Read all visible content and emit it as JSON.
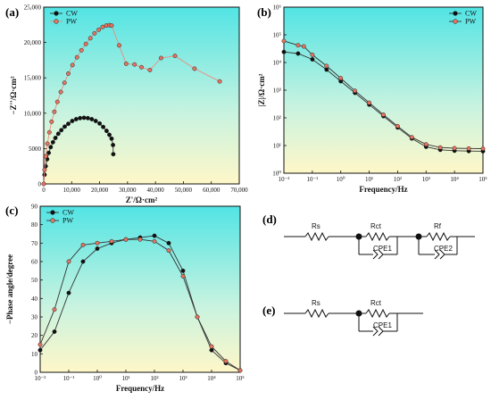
{
  "panel_letters": [
    "(a)",
    "(b)",
    "(c)",
    "(d)",
    "(e)"
  ],
  "colors": {
    "cw_fill": "#111111",
    "pw_fill": "#e8735f",
    "line": "#333333",
    "bg_top": "#5ee6e6",
    "bg_bottom": "#fff6c8",
    "pw_line_a": "#ee8a80"
  },
  "chart_data": [
    {
      "panel": "(a)",
      "type": "scatter",
      "xlabel": "Z'/Ω·cm²",
      "ylabel": "−Z''/Ω·cm²",
      "xlim": [
        0,
        70000
      ],
      "ylim": [
        0,
        25000
      ],
      "x_ticks": [
        "0",
        "10,000",
        "20,000",
        "30,000",
        "40,000",
        "50,000",
        "60,000",
        "70,000"
      ],
      "y_ticks": [
        "0",
        "5000",
        "10,000",
        "15,000",
        "20,000",
        "25,000"
      ],
      "legend": [
        "CW",
        "PW"
      ],
      "legend_position": "top-left",
      "series": [
        {
          "name": "CW",
          "x": [
            0,
            300,
            700,
            1200,
            1800,
            2500,
            3300,
            4200,
            5200,
            6300,
            7500,
            8800,
            10200,
            11600,
            13000,
            14400,
            15800,
            17200,
            18600,
            20000,
            21300,
            22500,
            23500,
            24300,
            24800,
            24900
          ],
          "y": [
            0,
            1300,
            2500,
            3500,
            4400,
            5200,
            5900,
            6500,
            7100,
            7600,
            8100,
            8500,
            8900,
            9150,
            9300,
            9350,
            9300,
            9150,
            8900,
            8550,
            8050,
            7500,
            6950,
            6400,
            5500,
            4200
          ]
        },
        {
          "name": "PW",
          "x": [
            0,
            300,
            700,
            1300,
            2000,
            2800,
            3800,
            4900,
            6100,
            7400,
            8800,
            10300,
            11900,
            13500,
            15100,
            16700,
            18200,
            19700,
            21100,
            22400,
            23500,
            24300,
            27000,
            29500,
            32500,
            35000,
            38000,
            42000,
            47000,
            54000,
            63000
          ],
          "y": [
            0,
            2000,
            3900,
            5700,
            7300,
            8800,
            10200,
            11600,
            13000,
            14300,
            15600,
            16800,
            17900,
            18900,
            19800,
            20600,
            21300,
            21800,
            22200,
            22400,
            22450,
            22400,
            19600,
            17000,
            16900,
            16500,
            16100,
            17800,
            18100,
            16300,
            14500
          ]
        }
      ]
    },
    {
      "panel": "(b)",
      "type": "scatter",
      "xlabel": "Frequency/Hz",
      "ylabel": "|Z|/Ω·cm²",
      "x_scale": "log",
      "y_scale": "log",
      "xlim": [
        0.01,
        100000
      ],
      "ylim": [
        1,
        1000000
      ],
      "x_ticks": [
        "10⁻²",
        "10⁻¹",
        "10⁰",
        "10¹",
        "10²",
        "10³",
        "10⁴",
        "10⁵"
      ],
      "y_ticks": [
        "10⁰",
        "10¹",
        "10²",
        "10³",
        "10⁴",
        "10⁵",
        "10⁶"
      ],
      "legend": [
        "CW",
        "PW"
      ],
      "legend_position": "top-right",
      "series": [
        {
          "name": "CW",
          "x": [
            0.01,
            0.0316,
            0.1,
            0.316,
            1,
            3.16,
            10,
            31.6,
            100,
            316,
            1000,
            3160,
            10000,
            31600,
            100000
          ],
          "y": [
            24000,
            21000,
            13000,
            5500,
            2100,
            800,
            300,
            115,
            45,
            18,
            9,
            7,
            6.5,
            6.3,
            6.2
          ]
        },
        {
          "name": "PW",
          "x": [
            0.01,
            0.0316,
            0.05,
            0.1,
            0.316,
            1,
            3.16,
            10,
            31.6,
            100,
            316,
            1000,
            3160,
            10000,
            31600,
            100000
          ],
          "y": [
            60000,
            42000,
            38000,
            19000,
            7500,
            2700,
            950,
            350,
            130,
            50,
            20,
            11,
            8.5,
            8,
            7.8,
            7.7
          ]
        }
      ]
    },
    {
      "panel": "(c)",
      "type": "scatter",
      "xlabel": "Frequency/Hz",
      "ylabel": "−Phase angle/degree",
      "x_scale": "log",
      "xlim": [
        0.01,
        100000
      ],
      "ylim": [
        0,
        90
      ],
      "x_ticks": [
        "10⁻²",
        "10⁻¹",
        "10⁰",
        "10¹",
        "10²",
        "10³",
        "10⁴",
        "10⁵"
      ],
      "y_ticks": [
        "0",
        "10",
        "20",
        "30",
        "40",
        "50",
        "60",
        "70",
        "80",
        "90"
      ],
      "legend": [
        "CW",
        "PW"
      ],
      "legend_position": "top-left",
      "series": [
        {
          "name": "CW",
          "x": [
            0.01,
            0.0316,
            0.1,
            0.316,
            1,
            3.16,
            10,
            31.6,
            100,
            316,
            1000,
            3160,
            10000,
            31600,
            100000
          ],
          "y": [
            12,
            22,
            43,
            60,
            67,
            70,
            72,
            73,
            74,
            70,
            55,
            30,
            12,
            5,
            1
          ]
        },
        {
          "name": "PW",
          "x": [
            0.01,
            0.0316,
            0.1,
            0.316,
            1,
            3.16,
            10,
            31.6,
            100,
            316,
            1000,
            3160,
            10000,
            31600,
            100000
          ],
          "y": [
            15,
            34,
            60,
            69,
            70,
            71,
            72,
            72,
            71,
            66,
            52,
            30,
            14,
            6,
            1
          ]
        }
      ]
    }
  ],
  "circuits": [
    {
      "panel": "(d)",
      "labels": [
        "Rs",
        "Rct",
        "CPE1",
        "Rf",
        "CPE2"
      ]
    },
    {
      "panel": "(e)",
      "labels": [
        "Rs",
        "Rct",
        "CPE1"
      ]
    }
  ]
}
